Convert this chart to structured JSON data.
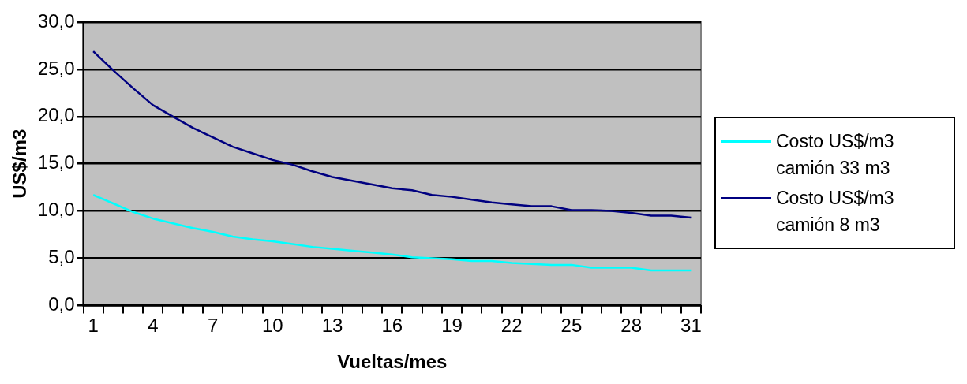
{
  "chart_data": {
    "type": "line",
    "xlabel": "Vueltas/mes",
    "ylabel": "US$/m3",
    "categories": [
      "1",
      null,
      null,
      "4",
      null,
      null,
      "7",
      null,
      null,
      "10",
      null,
      null,
      "13",
      null,
      null,
      "16",
      null,
      null,
      "19",
      null,
      null,
      "22",
      null,
      null,
      "25",
      null,
      null,
      "28",
      null,
      null,
      "31"
    ],
    "series": [
      {
        "name": "Costo US$/m3 camión 33 m3",
        "color": "#00ffff",
        "values": [
          11.7,
          10.8,
          9.9,
          9.2,
          8.7,
          8.2,
          7.8,
          7.3,
          7.0,
          6.8,
          6.5,
          6.2,
          6.0,
          5.8,
          5.6,
          5.4,
          5.1,
          5.0,
          4.9,
          4.7,
          4.7,
          4.5,
          4.4,
          4.3,
          4.3,
          4.0,
          4.0,
          4.0,
          3.7,
          3.7,
          3.7
        ]
      },
      {
        "name": "Costo US$/m3 camión 8 m3",
        "color": "#000080",
        "values": [
          26.9,
          24.9,
          23.0,
          21.2,
          20.0,
          18.8,
          17.8,
          16.8,
          16.1,
          15.4,
          14.9,
          14.2,
          13.6,
          13.2,
          12.8,
          12.4,
          12.2,
          11.7,
          11.5,
          11.2,
          10.9,
          10.7,
          10.5,
          10.5,
          10.1,
          10.1,
          10.0,
          9.8,
          9.5,
          9.5,
          9.3
        ]
      }
    ],
    "ylim": [
      0,
      30
    ],
    "yticks": [
      {
        "value": 0,
        "label": "0,0"
      },
      {
        "value": 5,
        "label": "5,0"
      },
      {
        "value": 10,
        "label": "10,0"
      },
      {
        "value": 15,
        "label": "15,0"
      },
      {
        "value": 20,
        "label": "20,0"
      },
      {
        "value": 25,
        "label": "25,0"
      },
      {
        "value": 30,
        "label": "30,0"
      }
    ],
    "grid": "y",
    "legend": "right",
    "marker": "none"
  }
}
